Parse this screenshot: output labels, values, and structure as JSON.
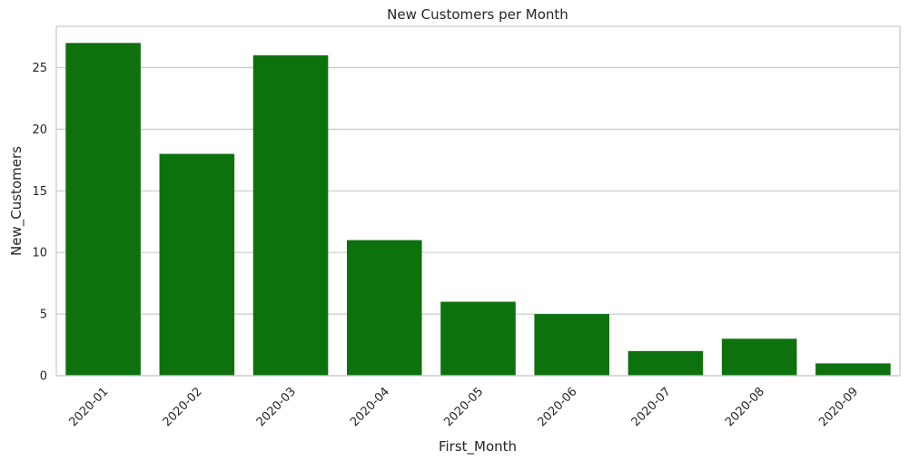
{
  "chart_data": {
    "type": "bar",
    "title": "New Customers per Month",
    "xlabel": "First_Month",
    "ylabel": "New_Customers",
    "categories": [
      "2020-01",
      "2020-02",
      "2020-03",
      "2020-04",
      "2020-05",
      "2020-06",
      "2020-07",
      "2020-08",
      "2020-09"
    ],
    "values": [
      27,
      18,
      26,
      11,
      6,
      5,
      2,
      3,
      1
    ],
    "ylim": [
      0,
      28.35
    ],
    "yticks": [
      0,
      5,
      10,
      15,
      20,
      25
    ],
    "grid": true,
    "bar_color": "#0d720d",
    "x_tick_rotation": 45
  }
}
